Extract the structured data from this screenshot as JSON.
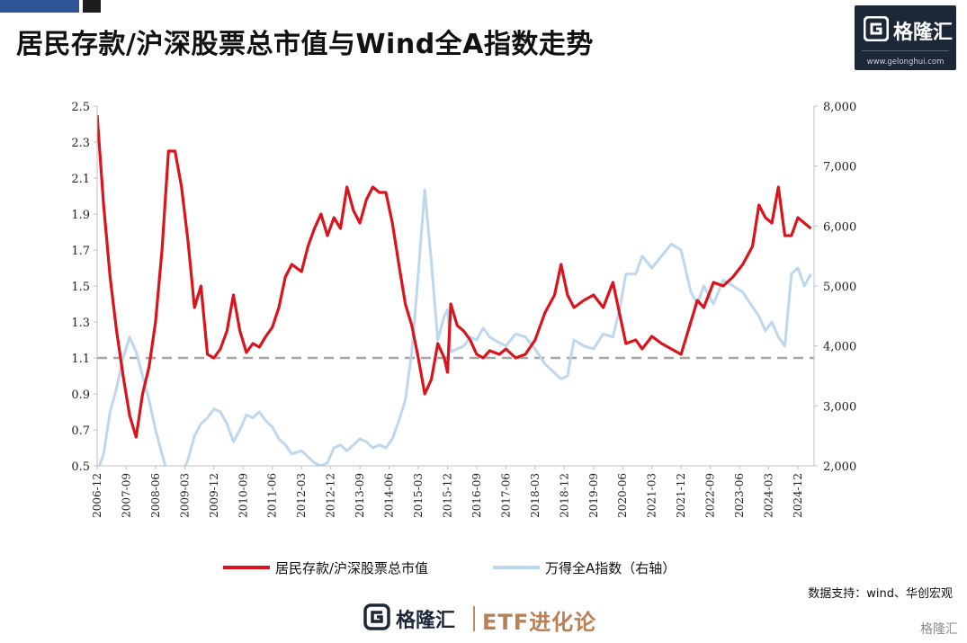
{
  "header": {
    "title": "居民存款/沪深股票总市值与Wind全A指数走势"
  },
  "brand": {
    "name": "格隆汇",
    "url": "www.gelonghui.com"
  },
  "footer": {
    "logo_name": "格隆汇",
    "etf_label": "ETF进化论",
    "source": "数据支持：wind、华创宏观",
    "corner_label": "格隆汇"
  },
  "colors": {
    "series_ratio": "#d9141c",
    "series_index": "#bdd7ee",
    "reference_line": "#a6a6a6"
  },
  "chart_data": {
    "type": "line",
    "title": "居民存款/沪深股票总市值与Wind全A指数走势",
    "grid": false,
    "legend_position": "bottom-center",
    "x_tick_labels": [
      "2006-12",
      "2007-09",
      "2008-06",
      "2009-03",
      "2009-12",
      "2010-09",
      "2011-06",
      "2012-03",
      "2012-12",
      "2013-09",
      "2014-06",
      "2015-03",
      "2015-12",
      "2016-09",
      "2017-06",
      "2018-03",
      "2018-12",
      "2019-09",
      "2020-06",
      "2021-03",
      "2021-12",
      "2022-09",
      "2023-06",
      "2024-03",
      "2024-12"
    ],
    "y_left": {
      "range": [
        0.5,
        2.5
      ],
      "ticks": [
        "0.5",
        "0.7",
        "0.9",
        "1.1",
        "1.3",
        "1.5",
        "1.7",
        "1.9",
        "2.1",
        "2.3",
        "2.5"
      ]
    },
    "y_right": {
      "range": [
        2000,
        8000
      ],
      "ticks": [
        "2,000",
        "3,000",
        "4,000",
        "5,000",
        "6,000",
        "7,000",
        "8,000"
      ]
    },
    "reference_line": {
      "axis": "left",
      "value": 1.1
    },
    "series": [
      {
        "name": "居民存款/沪深股票总市值",
        "axis": "left",
        "points": [
          [
            "2006-12",
            2.45
          ],
          [
            "2007-02",
            1.95
          ],
          [
            "2007-04",
            1.55
          ],
          [
            "2007-06",
            1.25
          ],
          [
            "2007-08",
            1.0
          ],
          [
            "2007-10",
            0.78
          ],
          [
            "2007-12",
            0.66
          ],
          [
            "2008-02",
            0.9
          ],
          [
            "2008-04",
            1.05
          ],
          [
            "2008-06",
            1.3
          ],
          [
            "2008-08",
            1.7
          ],
          [
            "2008-10",
            2.25
          ],
          [
            "2008-12",
            2.25
          ],
          [
            "2009-02",
            2.05
          ],
          [
            "2009-04",
            1.75
          ],
          [
            "2009-06",
            1.38
          ],
          [
            "2009-08",
            1.5
          ],
          [
            "2009-10",
            1.12
          ],
          [
            "2009-12",
            1.1
          ],
          [
            "2010-02",
            1.15
          ],
          [
            "2010-04",
            1.25
          ],
          [
            "2010-06",
            1.45
          ],
          [
            "2010-08",
            1.25
          ],
          [
            "2010-10",
            1.13
          ],
          [
            "2010-12",
            1.18
          ],
          [
            "2011-02",
            1.16
          ],
          [
            "2011-04",
            1.22
          ],
          [
            "2011-06",
            1.27
          ],
          [
            "2011-08",
            1.38
          ],
          [
            "2011-10",
            1.55
          ],
          [
            "2011-12",
            1.62
          ],
          [
            "2012-03",
            1.58
          ],
          [
            "2012-05",
            1.72
          ],
          [
            "2012-07",
            1.82
          ],
          [
            "2012-09",
            1.9
          ],
          [
            "2012-11",
            1.78
          ],
          [
            "2013-01",
            1.88
          ],
          [
            "2013-03",
            1.82
          ],
          [
            "2013-05",
            2.05
          ],
          [
            "2013-07",
            1.92
          ],
          [
            "2013-09",
            1.85
          ],
          [
            "2013-11",
            1.98
          ],
          [
            "2014-01",
            2.05
          ],
          [
            "2014-03",
            2.02
          ],
          [
            "2014-05",
            2.02
          ],
          [
            "2014-07",
            1.85
          ],
          [
            "2014-09",
            1.62
          ],
          [
            "2014-11",
            1.4
          ],
          [
            "2015-01",
            1.28
          ],
          [
            "2015-03",
            1.1
          ],
          [
            "2015-05",
            0.9
          ],
          [
            "2015-07",
            0.98
          ],
          [
            "2015-09",
            1.18
          ],
          [
            "2015-11",
            1.1
          ],
          [
            "2015-12",
            1.02
          ],
          [
            "2016-01",
            1.4
          ],
          [
            "2016-03",
            1.28
          ],
          [
            "2016-05",
            1.25
          ],
          [
            "2016-07",
            1.2
          ],
          [
            "2016-09",
            1.12
          ],
          [
            "2016-11",
            1.1
          ],
          [
            "2017-01",
            1.14
          ],
          [
            "2017-04",
            1.12
          ],
          [
            "2017-06",
            1.15
          ],
          [
            "2017-09",
            1.1
          ],
          [
            "2017-12",
            1.12
          ],
          [
            "2018-03",
            1.2
          ],
          [
            "2018-06",
            1.35
          ],
          [
            "2018-09",
            1.45
          ],
          [
            "2018-11",
            1.62
          ],
          [
            "2019-01",
            1.45
          ],
          [
            "2019-03",
            1.38
          ],
          [
            "2019-06",
            1.42
          ],
          [
            "2019-09",
            1.45
          ],
          [
            "2019-12",
            1.38
          ],
          [
            "2020-03",
            1.52
          ],
          [
            "2020-05",
            1.35
          ],
          [
            "2020-07",
            1.18
          ],
          [
            "2020-10",
            1.2
          ],
          [
            "2020-12",
            1.15
          ],
          [
            "2021-03",
            1.22
          ],
          [
            "2021-06",
            1.18
          ],
          [
            "2021-09",
            1.15
          ],
          [
            "2021-12",
            1.12
          ],
          [
            "2022-03",
            1.3
          ],
          [
            "2022-05",
            1.42
          ],
          [
            "2022-07",
            1.38
          ],
          [
            "2022-10",
            1.52
          ],
          [
            "2023-01",
            1.5
          ],
          [
            "2023-04",
            1.55
          ],
          [
            "2023-07",
            1.62
          ],
          [
            "2023-10",
            1.72
          ],
          [
            "2023-12",
            1.95
          ],
          [
            "2024-02",
            1.88
          ],
          [
            "2024-04",
            1.85
          ],
          [
            "2024-06",
            2.05
          ],
          [
            "2024-08",
            1.78
          ],
          [
            "2024-10",
            1.78
          ],
          [
            "2024-12",
            1.88
          ],
          [
            "2025-02",
            1.85
          ],
          [
            "2025-04",
            1.82
          ]
        ]
      },
      {
        "name": "万得全A指数（右轴）",
        "axis": "right",
        "points": [
          [
            "2006-12",
            1900
          ],
          [
            "2007-02",
            2200
          ],
          [
            "2007-04",
            2900
          ],
          [
            "2007-06",
            3300
          ],
          [
            "2007-08",
            3800
          ],
          [
            "2007-10",
            4150
          ],
          [
            "2007-12",
            3900
          ],
          [
            "2008-02",
            3500
          ],
          [
            "2008-04",
            3100
          ],
          [
            "2008-06",
            2600
          ],
          [
            "2008-08",
            2200
          ],
          [
            "2008-10",
            1800
          ],
          [
            "2008-12",
            1700
          ],
          [
            "2009-02",
            1850
          ],
          [
            "2009-04",
            2100
          ],
          [
            "2009-06",
            2500
          ],
          [
            "2009-08",
            2700
          ],
          [
            "2009-10",
            2800
          ],
          [
            "2009-12",
            2950
          ],
          [
            "2010-02",
            2900
          ],
          [
            "2010-04",
            2700
          ],
          [
            "2010-06",
            2400
          ],
          [
            "2010-08",
            2600
          ],
          [
            "2010-10",
            2850
          ],
          [
            "2010-12",
            2800
          ],
          [
            "2011-02",
            2900
          ],
          [
            "2011-04",
            2750
          ],
          [
            "2011-06",
            2650
          ],
          [
            "2011-08",
            2450
          ],
          [
            "2011-10",
            2350
          ],
          [
            "2011-12",
            2200
          ],
          [
            "2012-03",
            2250
          ],
          [
            "2012-05",
            2150
          ],
          [
            "2012-07",
            2050
          ],
          [
            "2012-09",
            2000
          ],
          [
            "2012-11",
            2050
          ],
          [
            "2013-01",
            2300
          ],
          [
            "2013-03",
            2350
          ],
          [
            "2013-05",
            2250
          ],
          [
            "2013-07",
            2350
          ],
          [
            "2013-09",
            2450
          ],
          [
            "2013-11",
            2400
          ],
          [
            "2014-01",
            2300
          ],
          [
            "2014-03",
            2350
          ],
          [
            "2014-05",
            2300
          ],
          [
            "2014-07",
            2450
          ],
          [
            "2014-09",
            2750
          ],
          [
            "2014-11",
            3100
          ],
          [
            "2015-01",
            3900
          ],
          [
            "2015-03",
            5200
          ],
          [
            "2015-05",
            6600
          ],
          [
            "2015-07",
            5400
          ],
          [
            "2015-09",
            4100
          ],
          [
            "2015-11",
            4500
          ],
          [
            "2015-12",
            4600
          ],
          [
            "2016-01",
            3900
          ],
          [
            "2016-03",
            3950
          ],
          [
            "2016-05",
            4000
          ],
          [
            "2016-07",
            4150
          ],
          [
            "2016-09",
            4100
          ],
          [
            "2016-11",
            4300
          ],
          [
            "2017-01",
            4150
          ],
          [
            "2017-04",
            4050
          ],
          [
            "2017-06",
            4000
          ],
          [
            "2017-09",
            4200
          ],
          [
            "2017-12",
            4150
          ],
          [
            "2018-03",
            3950
          ],
          [
            "2018-06",
            3700
          ],
          [
            "2018-09",
            3550
          ],
          [
            "2018-11",
            3450
          ],
          [
            "2019-01",
            3500
          ],
          [
            "2019-03",
            4100
          ],
          [
            "2019-06",
            4000
          ],
          [
            "2019-09",
            3950
          ],
          [
            "2019-12",
            4200
          ],
          [
            "2020-03",
            4150
          ],
          [
            "2020-05",
            4600
          ],
          [
            "2020-07",
            5200
          ],
          [
            "2020-10",
            5200
          ],
          [
            "2020-12",
            5500
          ],
          [
            "2021-03",
            5300
          ],
          [
            "2021-06",
            5500
          ],
          [
            "2021-09",
            5700
          ],
          [
            "2021-12",
            5600
          ],
          [
            "2022-03",
            4900
          ],
          [
            "2022-05",
            4700
          ],
          [
            "2022-07",
            5000
          ],
          [
            "2022-10",
            4700
          ],
          [
            "2023-01",
            5100
          ],
          [
            "2023-04",
            5000
          ],
          [
            "2023-07",
            4900
          ],
          [
            "2023-10",
            4650
          ],
          [
            "2023-12",
            4500
          ],
          [
            "2024-02",
            4250
          ],
          [
            "2024-04",
            4400
          ],
          [
            "2024-06",
            4150
          ],
          [
            "2024-08",
            4000
          ],
          [
            "2024-10",
            5200
          ],
          [
            "2024-12",
            5300
          ],
          [
            "2025-02",
            5000
          ],
          [
            "2025-04",
            5200
          ]
        ]
      }
    ]
  }
}
